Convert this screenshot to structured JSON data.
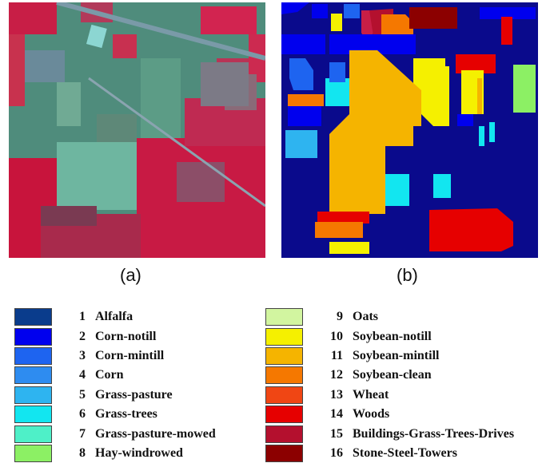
{
  "captions": {
    "a": "(a)",
    "b": "(b)"
  },
  "legend": {
    "left": [
      {
        "num": "1",
        "name": "Alfalfa",
        "color": "#0a3c8c"
      },
      {
        "num": "2",
        "name": "Corn-notill",
        "color": "#0000ee"
      },
      {
        "num": "3",
        "name": "Corn-mintill",
        "color": "#1e64f0"
      },
      {
        "num": "4",
        "name": "Corn",
        "color": "#2e8cf0"
      },
      {
        "num": "5",
        "name": "Grass-pasture",
        "color": "#2eb4f0"
      },
      {
        "num": "6",
        "name": "Grass-trees",
        "color": "#12e6f0"
      },
      {
        "num": "7",
        "name": "Grass-pasture-mowed",
        "color": "#4ef0c8"
      },
      {
        "num": "8",
        "name": "Hay-windrowed",
        "color": "#8cf064"
      }
    ],
    "right": [
      {
        "num": "9",
        "name": "Oats",
        "color": "#d2f5a0"
      },
      {
        "num": "10",
        "name": "Soybean-notill",
        "color": "#f5f000"
      },
      {
        "num": "11",
        "name": "Soybean-mintill",
        "color": "#f5b400"
      },
      {
        "num": "12",
        "name": "Soybean-clean",
        "color": "#f57800"
      },
      {
        "num": "13",
        "name": "Wheat",
        "color": "#f04614"
      },
      {
        "num": "14",
        "name": "Woods",
        "color": "#e60000"
      },
      {
        "num": "15",
        "name": "Buildings-Grass-Trees-Drives",
        "color": "#b4102e"
      },
      {
        "num": "16",
        "name": "Stone-Steel-Towers",
        "color": "#8c0000"
      }
    ]
  }
}
